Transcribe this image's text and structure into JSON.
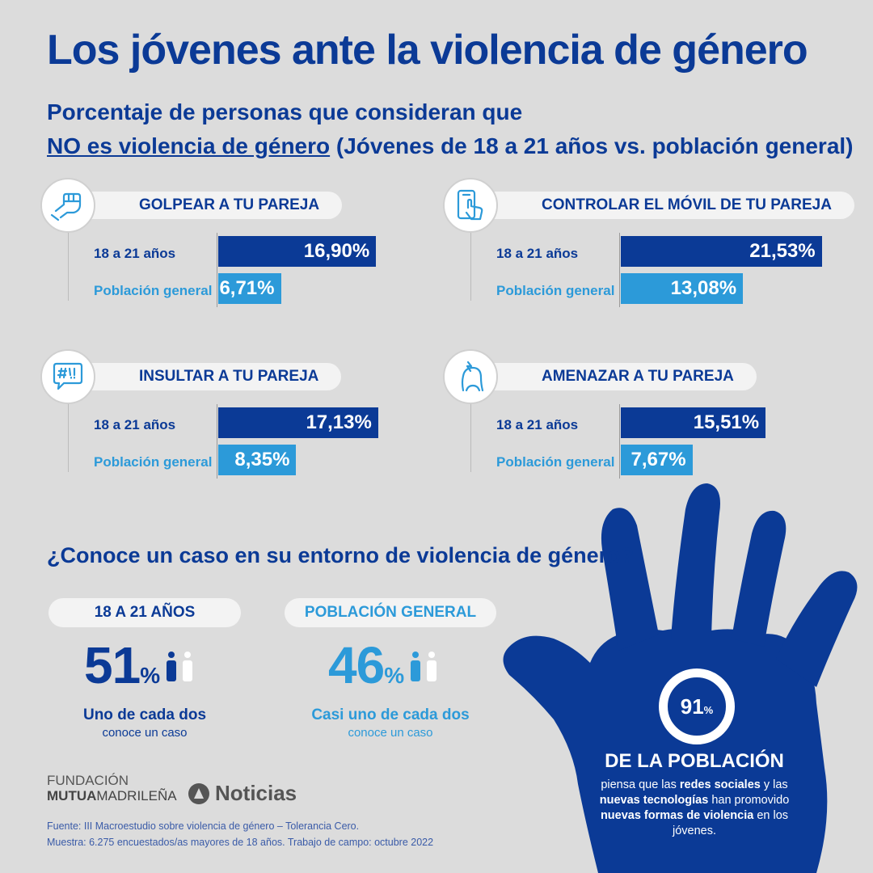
{
  "title": "Los jóvenes ante la violencia de género",
  "subtitle": {
    "line1": "Porcentaje de personas que consideran que",
    "emph": "NO es violencia de género",
    "rest": " (Jóvenes de 18 a 21 años vs. población general)"
  },
  "labels": {
    "young": "18 a 21 años",
    "general": "Población general"
  },
  "chart_data": {
    "type": "bar",
    "series": [
      {
        "name": "18 a 21 años",
        "color": "#0b3a96"
      },
      {
        "name": "Población general",
        "color": "#2c9ad9"
      }
    ],
    "groups": [
      {
        "label": "GOLPEAR A TU PAREJA",
        "icon": "fist-icon",
        "young": 16.9,
        "young_label": "16,90%",
        "general": 6.71,
        "general_label": "6,71%"
      },
      {
        "label": "CONTROLAR EL MÓVIL DE TU PAREJA",
        "icon": "phone-touch-icon",
        "young": 21.53,
        "young_label": "21,53%",
        "general": 13.08,
        "general_label": "13,08%"
      },
      {
        "label": "INSULTAR A TU PAREJA",
        "icon": "speech-insult-icon",
        "young": 17.13,
        "young_label": "17,13%",
        "general": 8.35,
        "general_label": "8,35%"
      },
      {
        "label": "AMENAZAR A TU PAREJA",
        "icon": "threat-head-icon",
        "young": 15.51,
        "young_label": "15,51%",
        "general": 7.67,
        "general_label": "7,67%"
      }
    ]
  },
  "knows_case": {
    "question": "¿Conoce un caso en su entorno de violencia de género?",
    "young": {
      "header": "18 A 21 AÑOS",
      "value": "51",
      "unit": "%",
      "caption": "Uno de cada dos",
      "sub": "conoce un caso",
      "color": "#0b3a96"
    },
    "general": {
      "header": "POBLACIÓN GENERAL",
      "value": "46",
      "unit": "%",
      "caption": "Casi uno de cada dos",
      "sub": "conoce un caso",
      "color": "#2c9ad9"
    }
  },
  "footer": {
    "fundacion_line1": "FUNDACIÓN",
    "fundacion_line2a": "MUTUA",
    "fundacion_line2b": "MADRILEÑA",
    "noticias": "Noticias",
    "source": "Fuente: III Macroestudio sobre violencia de género – Tolerancia Cero.",
    "sample": "Muestra: 6.275 encuestados/as mayores de 18 años. Trabajo de campo: octubre 2022"
  },
  "hand": {
    "value": "91",
    "unit": "%",
    "title": "DE LA POBLACIÓN",
    "t1": "piensa que las ",
    "b1": "redes sociales",
    "t2": " y las ",
    "b2": "nuevas tecnologías",
    "t3": " han promovido ",
    "b3": "nuevas formas de violencia",
    "t4": " en los jóvenes."
  }
}
